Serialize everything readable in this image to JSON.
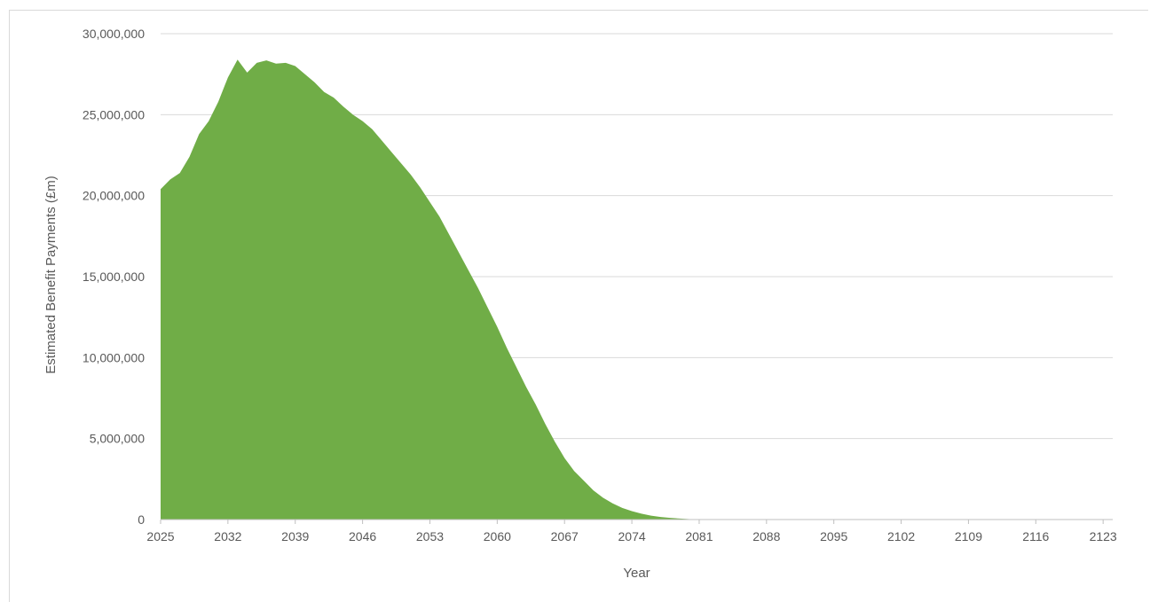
{
  "chart_data": {
    "type": "area",
    "title": "",
    "xlabel": "Year",
    "ylabel": "Estimated Benefit Payments (£m)",
    "xlim": [
      2025,
      2124
    ],
    "ylim": [
      0,
      30000000
    ],
    "grid": true,
    "legend": "none",
    "x_ticks": [
      "2025",
      "2032",
      "2039",
      "2046",
      "2053",
      "2060",
      "2067",
      "2074",
      "2081",
      "2088",
      "2095",
      "2102",
      "2109",
      "2116",
      "2123"
    ],
    "y_ticks": [
      "0",
      "5,000,000",
      "10,000,000",
      "15,000,000",
      "20,000,000",
      "25,000,000",
      "30,000,000"
    ],
    "colors": {
      "fill": "#70ad47",
      "grid": "#d9d9d9",
      "text": "#595959"
    },
    "series": [
      {
        "x": [
          2025,
          2026,
          2027,
          2028,
          2029,
          2030,
          2031,
          2032,
          2033,
          2034,
          2035,
          2036,
          2037,
          2038,
          2039,
          2040,
          2041,
          2042,
          2043,
          2044,
          2045,
          2046,
          2047,
          2048,
          2049,
          2050,
          2051,
          2052,
          2053,
          2054,
          2055,
          2056,
          2057,
          2058,
          2059,
          2060,
          2061,
          2062,
          2063,
          2064,
          2065,
          2066,
          2067,
          2068,
          2069,
          2070,
          2071,
          2072,
          2073,
          2074,
          2075,
          2076,
          2077,
          2078,
          2079,
          2080,
          2081,
          2082,
          2083,
          2084,
          2085,
          2090,
          2100,
          2110,
          2120,
          2124
        ],
        "y": [
          20400000,
          21000000,
          21400000,
          22400000,
          23800000,
          24600000,
          25800000,
          27300000,
          28400000,
          27600000,
          28200000,
          28350000,
          28150000,
          28200000,
          28000000,
          27500000,
          27000000,
          26400000,
          26050000,
          25500000,
          25000000,
          24600000,
          24100000,
          23400000,
          22700000,
          22000000,
          21300000,
          20500000,
          19600000,
          18700000,
          17600000,
          16500000,
          15400000,
          14300000,
          13100000,
          11900000,
          10600000,
          9400000,
          8200000,
          7100000,
          5900000,
          4800000,
          3800000,
          3000000,
          2400000,
          1800000,
          1350000,
          1000000,
          720000,
          520000,
          360000,
          240000,
          160000,
          100000,
          60000,
          30000,
          15000,
          5000,
          2000,
          1000,
          0,
          0,
          0,
          0,
          0,
          0
        ]
      }
    ]
  }
}
